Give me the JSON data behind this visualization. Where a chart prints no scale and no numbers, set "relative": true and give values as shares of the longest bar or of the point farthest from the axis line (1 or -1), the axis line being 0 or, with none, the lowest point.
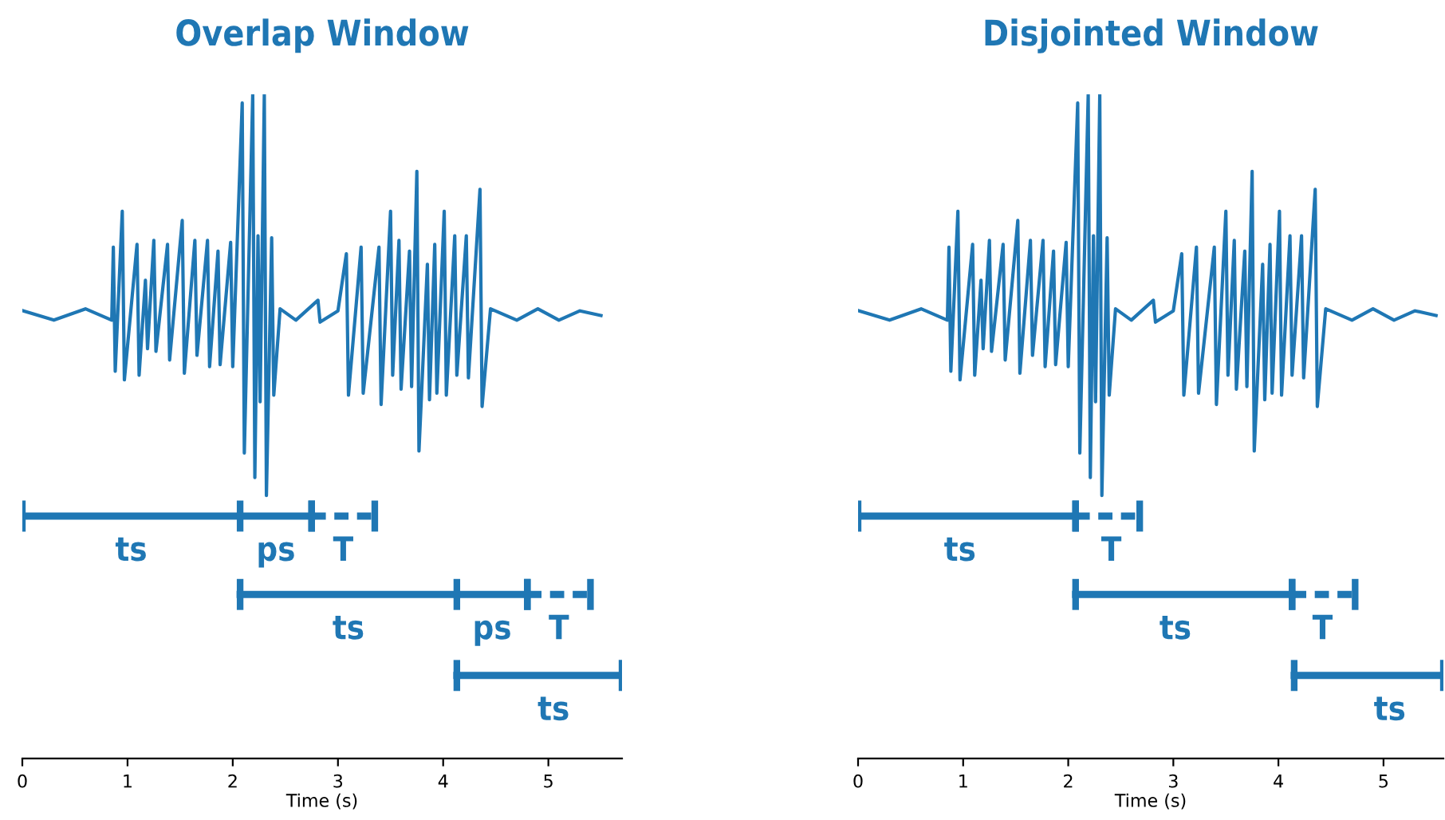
{
  "chart_data": [
    {
      "type": "line",
      "title": "Overlap Window",
      "xlabel": "Time (s)",
      "xlim": [
        0,
        5.7
      ],
      "xticks": [
        0,
        1,
        2,
        3,
        4,
        5
      ],
      "tick_labels": "x",
      "relative": true,
      "grid": false,
      "series": [
        {
          "color": "#1f77b4",
          "x": [
            0.01,
            0.3,
            0.6,
            0.85,
            0.865,
            0.883,
            0.95,
            0.97,
            1.09,
            1.11,
            1.17,
            1.19,
            1.25,
            1.27,
            1.38,
            1.4,
            1.52,
            1.54,
            1.64,
            1.66,
            1.76,
            1.78,
            1.86,
            1.88,
            1.98,
            2.0,
            2.09,
            2.11,
            2.19,
            2.21,
            2.24,
            2.26,
            2.3,
            2.32,
            2.37,
            2.39,
            2.45,
            2.6,
            2.81,
            2.83,
            3.0,
            3.08,
            3.1,
            3.22,
            3.24,
            3.39,
            3.41,
            3.5,
            3.52,
            3.58,
            3.6,
            3.68,
            3.7,
            3.75,
            3.77,
            3.85,
            3.87,
            3.92,
            3.94,
            4.01,
            4.03,
            4.11,
            4.13,
            4.22,
            4.24,
            4.35,
            4.37,
            4.45,
            4.7,
            4.9,
            5.1,
            5.3,
            5.5
          ],
          "values": [
            0.674,
            0.66,
            0.677,
            0.66,
            0.77,
            0.583,
            0.824,
            0.57,
            0.774,
            0.577,
            0.72,
            0.617,
            0.78,
            0.613,
            0.774,
            0.6,
            0.81,
            0.58,
            0.78,
            0.607,
            0.78,
            0.59,
            0.764,
            0.593,
            0.777,
            0.59,
            0.987,
            0.46,
            1.0,
            0.423,
            0.787,
            0.537,
            1.0,
            0.396,
            0.784,
            0.547,
            0.677,
            0.66,
            0.69,
            0.657,
            0.674,
            0.76,
            0.547,
            0.77,
            0.55,
            0.77,
            0.533,
            0.824,
            0.577,
            0.78,
            0.556,
            0.764,
            0.56,
            0.884,
            0.463,
            0.744,
            0.54,
            0.774,
            0.55,
            0.824,
            0.547,
            0.787,
            0.577,
            0.787,
            0.573,
            0.857,
            0.53,
            0.677,
            0.66,
            0.677,
            0.66,
            0.674,
            0.667
          ]
        },
        {
          "color": "#1f77b4",
          "x": [
            0,
            2.07,
            2.75
          ],
          "values": [
            0.365,
            0.365,
            0.365
          ],
          "line_style": "solid"
        },
        {
          "color": "#1f77b4",
          "x": [
            2.75,
            3.35
          ],
          "values": [
            0.365,
            0.365
          ],
          "line_style": "dashed"
        },
        {
          "color": "#1f77b4",
          "x": [
            2.07,
            4.13,
            4.8
          ],
          "values": [
            0.247,
            0.247,
            0.247
          ],
          "line_style": "solid"
        },
        {
          "color": "#1f77b4",
          "x": [
            4.8,
            5.4
          ],
          "values": [
            0.247,
            0.247
          ],
          "line_style": "dashed"
        },
        {
          "color": "#1f77b4",
          "x": [
            4.13,
            5.7
          ],
          "values": [
            0.125,
            0.125
          ],
          "line_style": "solid"
        }
      ],
      "annotations": [
        {
          "text": "ts",
          "x": 1.035,
          "y": 0.365
        },
        {
          "text": "ps",
          "x": 2.41,
          "y": 0.365
        },
        {
          "text": "T",
          "x": 3.05,
          "y": 0.365
        },
        {
          "text": "ts",
          "x": 3.1,
          "y": 0.247
        },
        {
          "text": "ps",
          "x": 4.465,
          "y": 0.247
        },
        {
          "text": "T",
          "x": 5.1,
          "y": 0.247
        },
        {
          "text": "ts",
          "x": 5.05,
          "y": 0.125
        }
      ]
    },
    {
      "type": "line",
      "title": "Disjointed Window",
      "xlabel": "Time (s)",
      "xlim": [
        0,
        5.57
      ],
      "xticks": [
        0,
        1,
        2,
        3,
        4,
        5
      ],
      "tick_labels": "x",
      "relative": true,
      "grid": false,
      "series": [
        {
          "color": "#1f77b4",
          "x": [
            0.01,
            0.3,
            0.6,
            0.85,
            0.865,
            0.883,
            0.95,
            0.97,
            1.09,
            1.11,
            1.17,
            1.19,
            1.25,
            1.27,
            1.38,
            1.4,
            1.52,
            1.54,
            1.64,
            1.66,
            1.76,
            1.78,
            1.86,
            1.88,
            1.98,
            2.0,
            2.09,
            2.11,
            2.19,
            2.21,
            2.24,
            2.26,
            2.3,
            2.32,
            2.37,
            2.39,
            2.45,
            2.6,
            2.81,
            2.83,
            3.0,
            3.08,
            3.1,
            3.22,
            3.24,
            3.39,
            3.41,
            3.5,
            3.52,
            3.58,
            3.6,
            3.68,
            3.7,
            3.75,
            3.77,
            3.85,
            3.87,
            3.92,
            3.94,
            4.01,
            4.03,
            4.11,
            4.13,
            4.22,
            4.24,
            4.35,
            4.37,
            4.45,
            4.7,
            4.9,
            5.1,
            5.3,
            5.5
          ],
          "values": [
            0.674,
            0.66,
            0.677,
            0.66,
            0.77,
            0.583,
            0.824,
            0.57,
            0.774,
            0.577,
            0.72,
            0.617,
            0.78,
            0.613,
            0.774,
            0.6,
            0.81,
            0.58,
            0.78,
            0.607,
            0.78,
            0.59,
            0.764,
            0.593,
            0.777,
            0.59,
            0.987,
            0.46,
            1.0,
            0.423,
            0.787,
            0.537,
            1.0,
            0.396,
            0.784,
            0.547,
            0.677,
            0.66,
            0.69,
            0.657,
            0.674,
            0.76,
            0.547,
            0.77,
            0.55,
            0.77,
            0.533,
            0.824,
            0.577,
            0.78,
            0.556,
            0.764,
            0.56,
            0.884,
            0.463,
            0.744,
            0.54,
            0.774,
            0.55,
            0.824,
            0.547,
            0.787,
            0.577,
            0.787,
            0.573,
            0.857,
            0.53,
            0.677,
            0.66,
            0.677,
            0.66,
            0.674,
            0.667
          ]
        },
        {
          "color": "#1f77b4",
          "x": [
            0,
            2.07
          ],
          "values": [
            0.365,
            0.365
          ],
          "line_style": "solid"
        },
        {
          "color": "#1f77b4",
          "x": [
            2.07,
            2.68
          ],
          "values": [
            0.365,
            0.365
          ],
          "line_style": "dashed"
        },
        {
          "color": "#1f77b4",
          "x": [
            2.07,
            4.13
          ],
          "values": [
            0.247,
            0.247
          ],
          "line_style": "solid"
        },
        {
          "color": "#1f77b4",
          "x": [
            4.13,
            4.73
          ],
          "values": [
            0.247,
            0.247
          ],
          "line_style": "dashed"
        },
        {
          "color": "#1f77b4",
          "x": [
            4.15,
            5.57
          ],
          "values": [
            0.125,
            0.125
          ],
          "line_style": "solid"
        }
      ],
      "annotations": [
        {
          "text": "ts",
          "x": 0.97,
          "y": 0.365
        },
        {
          "text": "T",
          "x": 2.41,
          "y": 0.365
        },
        {
          "text": "ts",
          "x": 3.02,
          "y": 0.247
        },
        {
          "text": "T",
          "x": 4.42,
          "y": 0.247
        },
        {
          "text": "ts",
          "x": 5.06,
          "y": 0.125
        }
      ]
    }
  ]
}
